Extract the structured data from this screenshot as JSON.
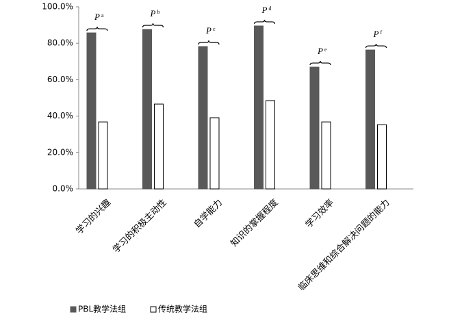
{
  "chart_data": {
    "type": "bar",
    "categories": [
      "学习的兴趣",
      "学习的积极主动性",
      "自学能力",
      "知识的掌握程度",
      "学习效率",
      "临床思维和综合解决问题的能力"
    ],
    "series": [
      {
        "name": "PBL教学法组",
        "color": "#595959",
        "values": [
          85.7,
          87.6,
          78.2,
          89.5,
          66.9,
          76.3
        ]
      },
      {
        "name": "传统教学法组",
        "color": "#ffffff",
        "values": [
          36.8,
          46.6,
          39.1,
          48.5,
          36.8,
          35.3
        ]
      }
    ],
    "annotations": [
      {
        "text": "P",
        "sup": "a"
      },
      {
        "text": "P",
        "sup": "b"
      },
      {
        "text": "P",
        "sup": "c"
      },
      {
        "text": "P",
        "sup": "d"
      },
      {
        "text": "P",
        "sup": "e"
      },
      {
        "text": "P",
        "sup": "f"
      }
    ],
    "ylim": [
      0,
      100
    ],
    "yticks": [
      {
        "value": 0,
        "label": "0.0%"
      },
      {
        "value": 20,
        "label": "20.0%"
      },
      {
        "value": 40,
        "label": "40.0%"
      },
      {
        "value": 60,
        "label": "60.0%"
      },
      {
        "value": 80,
        "label": "80.0%"
      },
      {
        "value": 100,
        "label": "100.0%"
      }
    ],
    "legend": "bottom-left"
  }
}
